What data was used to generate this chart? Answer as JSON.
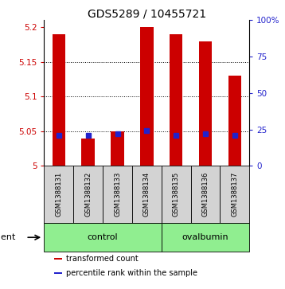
{
  "title": "GDS5289 / 10455721",
  "samples": [
    "GSM1388131",
    "GSM1388132",
    "GSM1388133",
    "GSM1388134",
    "GSM1388135",
    "GSM1388136",
    "GSM1388137"
  ],
  "group_defs": [
    {
      "name": "control",
      "color": "#90ee90",
      "start": 0,
      "end": 3
    },
    {
      "name": "ovalbumin",
      "color": "#90ee90",
      "start": 4,
      "end": 6
    }
  ],
  "transformed_count": [
    5.19,
    5.04,
    5.05,
    5.2,
    5.19,
    5.18,
    5.13
  ],
  "percentile_rank": [
    21,
    21,
    22,
    24,
    21,
    22,
    21
  ],
  "ylim_left": [
    5.0,
    5.21
  ],
  "ylim_right": [
    0,
    100
  ],
  "yticks_left": [
    5.0,
    5.05,
    5.1,
    5.15,
    5.2
  ],
  "yticks_right": [
    0,
    25,
    50,
    75,
    100
  ],
  "bar_color": "#cc0000",
  "percentile_color": "#2222cc",
  "agent_label": "agent",
  "legend_items": [
    "transformed count",
    "percentile rank within the sample"
  ],
  "legend_colors": [
    "#cc0000",
    "#2222cc"
  ],
  "title_fontsize": 10,
  "tick_fontsize": 7.5,
  "bar_bottom": 5.0,
  "right_axis_color": "#2222cc",
  "bar_width": 0.45
}
